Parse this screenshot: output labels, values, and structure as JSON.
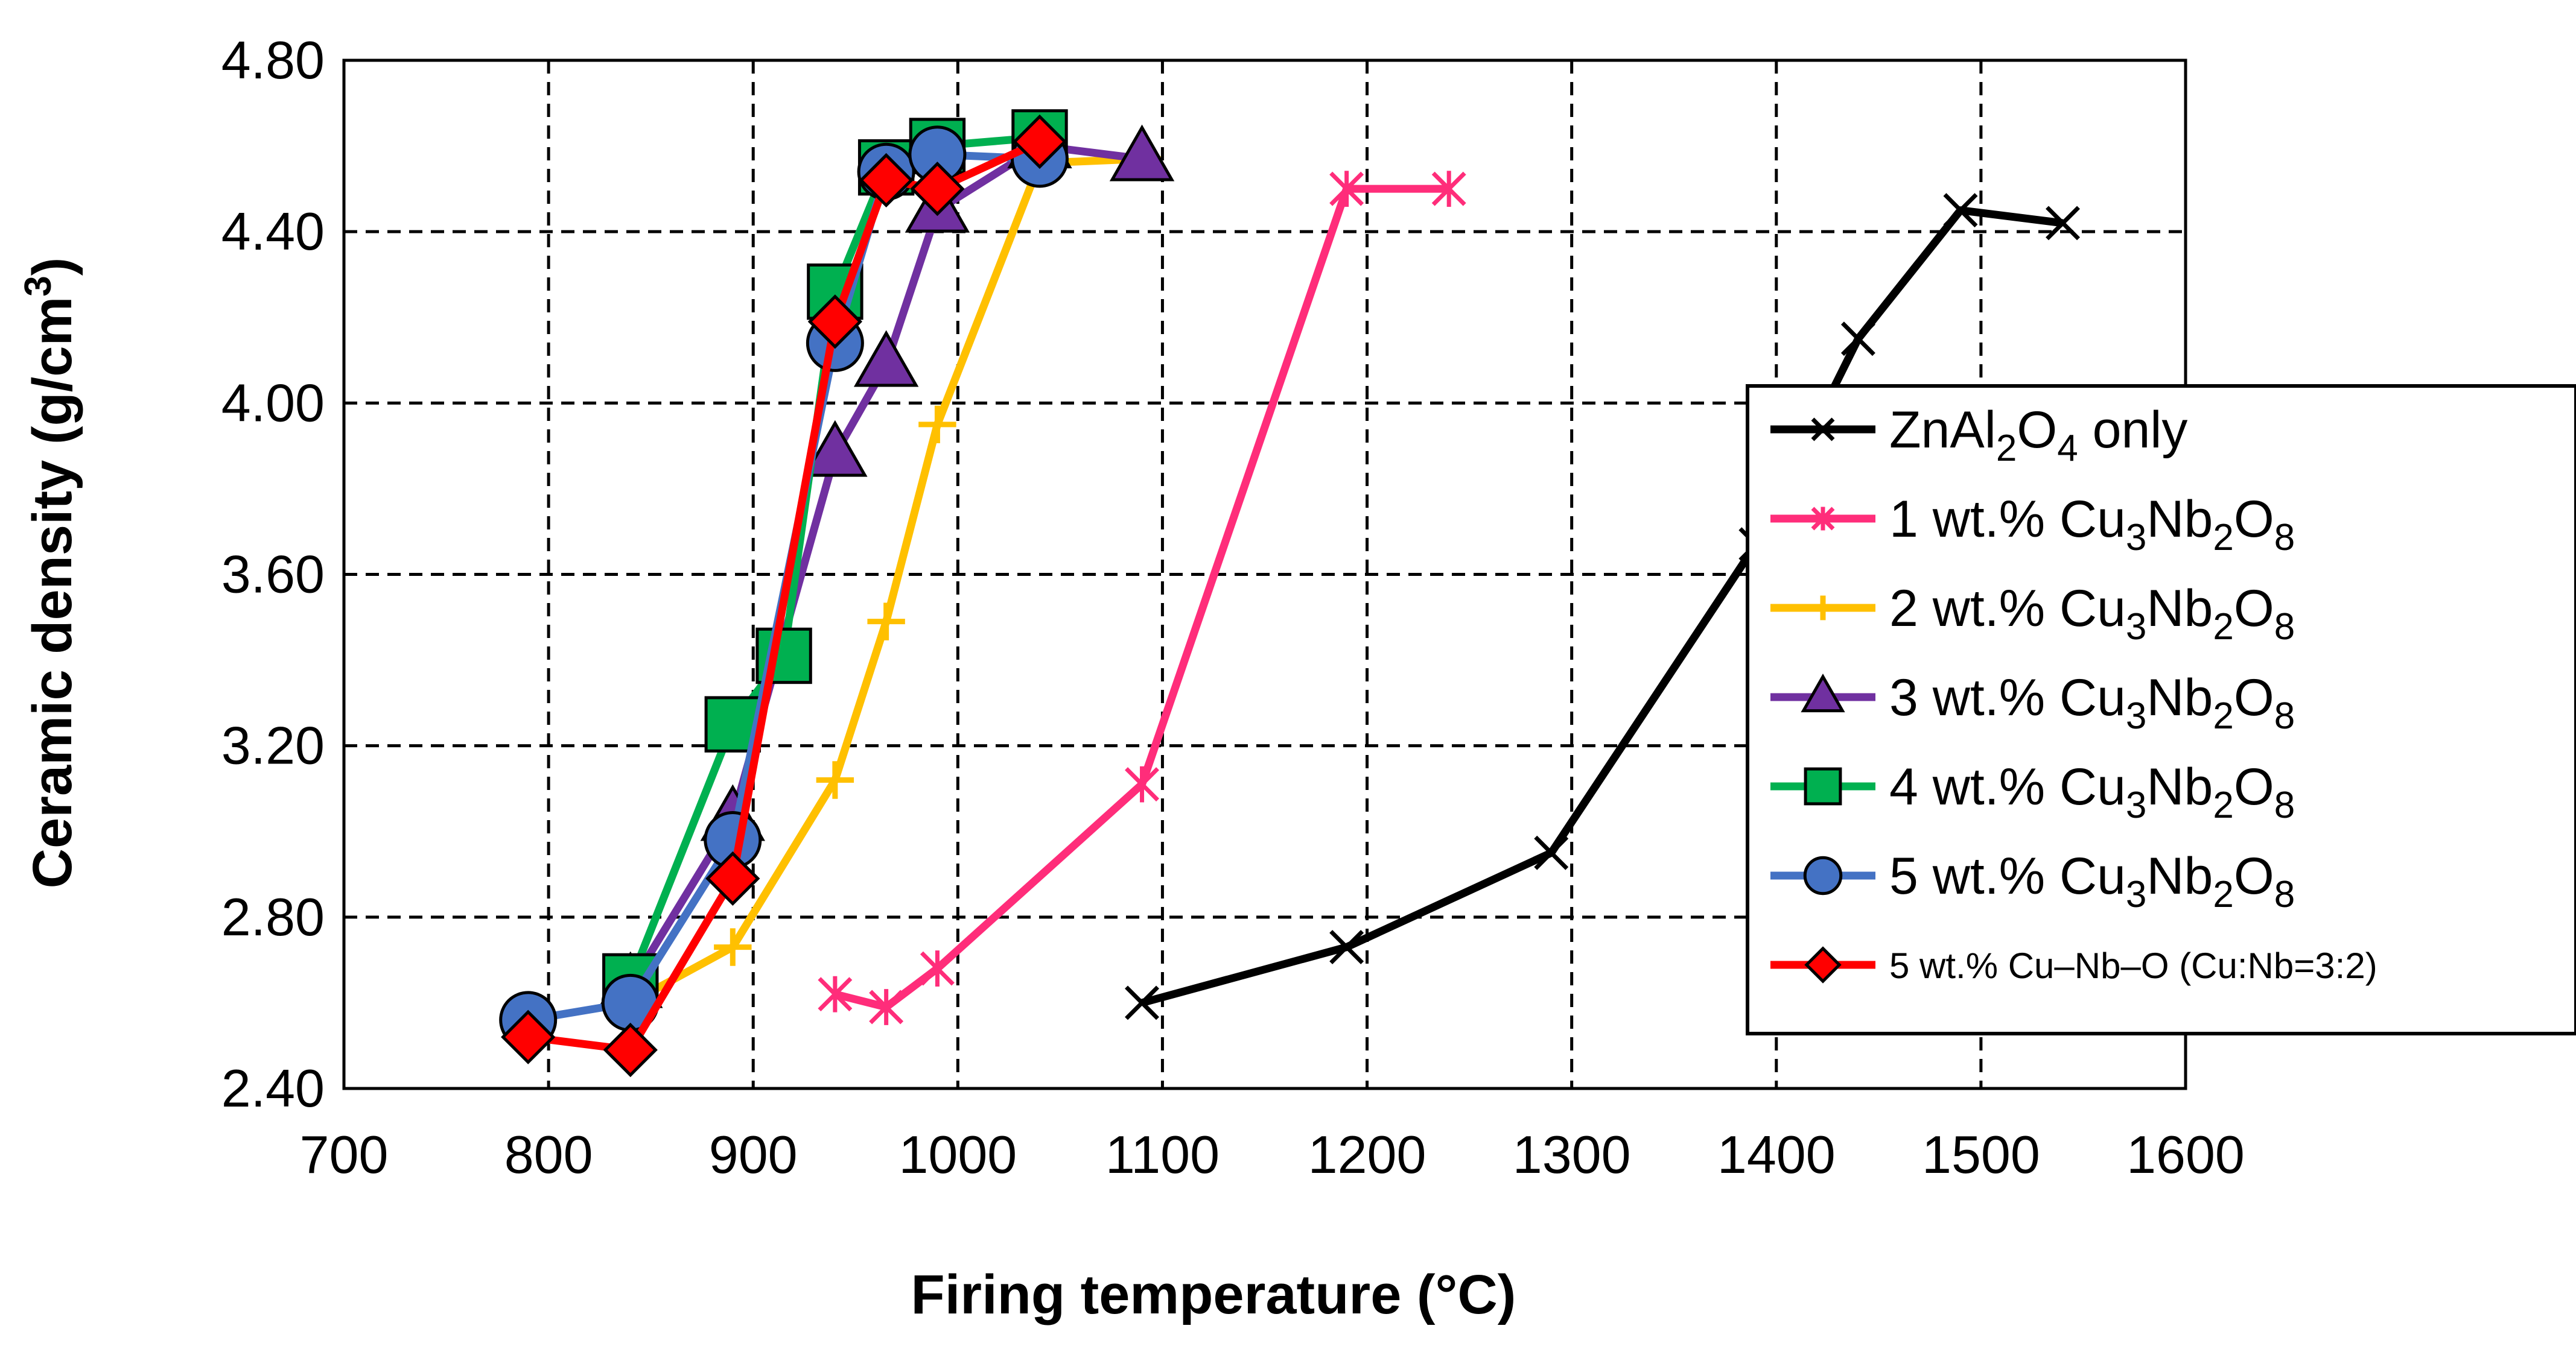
{
  "chart_data": {
    "type": "line",
    "xlabel": "Firing temperature (°C)",
    "ylabel": {
      "main": "Ceramic density (g/cm",
      "sup": "3",
      "end": ")"
    },
    "xlim": [
      700,
      1600
    ],
    "ylim": [
      2.4,
      4.8
    ],
    "x_ticks": [
      700,
      800,
      900,
      1000,
      1100,
      1200,
      1300,
      1400,
      1500,
      1600
    ],
    "x_tick_labels": [
      "700",
      "800",
      "900",
      "1000",
      "1100",
      "1200",
      "1300",
      "1400",
      "1500",
      "1600"
    ],
    "y_ticks": [
      2.4,
      2.8,
      3.2,
      3.6,
      4.0,
      4.4,
      4.8
    ],
    "y_tick_labels": [
      "2.40",
      "2.80",
      "3.20",
      "3.60",
      "4.00",
      "4.40",
      "4.80"
    ],
    "grid": "dashed",
    "legend_position": "right",
    "series": [
      {
        "name": "ZnAl2O4 only",
        "label_parts": [
          [
            "ZnAl",
            "n"
          ],
          [
            "2",
            "sub"
          ],
          [
            "O",
            "n"
          ],
          [
            "4",
            "sub"
          ],
          [
            " only",
            "n"
          ]
        ],
        "color": "#000000",
        "marker": "x",
        "x": [
          1090,
          1190,
          1290,
          1390,
          1440,
          1490,
          1540
        ],
        "y": [
          2.6,
          2.73,
          2.95,
          3.67,
          4.15,
          4.45,
          4.42
        ]
      },
      {
        "name": "1 wt.% Cu3Nb2O8",
        "label_parts": [
          [
            "1 wt.% Cu",
            "n"
          ],
          [
            "3",
            "sub"
          ],
          [
            "Nb",
            "n"
          ],
          [
            "2",
            "sub"
          ],
          [
            "O",
            "n"
          ],
          [
            "8",
            "sub"
          ]
        ],
        "color": "#ff2d7a",
        "marker": "asterisk",
        "x": [
          940,
          965,
          990,
          1090,
          1190,
          1240
        ],
        "y": [
          2.62,
          2.59,
          2.68,
          3.11,
          4.5,
          4.5
        ]
      },
      {
        "name": "2 wt.% Cu3Nb2O8",
        "label_parts": [
          [
            "2 wt.% Cu",
            "n"
          ],
          [
            "3",
            "sub"
          ],
          [
            "Nb",
            "n"
          ],
          [
            "2",
            "sub"
          ],
          [
            "O",
            "n"
          ],
          [
            "8",
            "sub"
          ]
        ],
        "color": "#ffc000",
        "marker": "plus",
        "x": [
          840,
          890,
          940,
          965,
          990,
          1040,
          1090
        ],
        "y": [
          2.6,
          2.73,
          3.12,
          3.49,
          3.95,
          4.56,
          4.57
        ]
      },
      {
        "name": "3 wt.% Cu3Nb2O8",
        "label_parts": [
          [
            "3 wt.% Cu",
            "n"
          ],
          [
            "3",
            "sub"
          ],
          [
            "Nb",
            "n"
          ],
          [
            "2",
            "sub"
          ],
          [
            "O",
            "n"
          ],
          [
            "8",
            "sub"
          ]
        ],
        "color": "#7030a0",
        "marker": "triangle",
        "x": [
          840,
          890,
          940,
          965,
          990,
          1040,
          1090
        ],
        "y": [
          2.64,
          3.03,
          3.88,
          4.09,
          4.45,
          4.6,
          4.57
        ]
      },
      {
        "name": "4 wt.% Cu3Nb2O8",
        "label_parts": [
          [
            "4 wt.% Cu",
            "n"
          ],
          [
            "3",
            "sub"
          ],
          [
            "Nb",
            "n"
          ],
          [
            "2",
            "sub"
          ],
          [
            "O",
            "n"
          ],
          [
            "8",
            "sub"
          ]
        ],
        "color": "#00b050",
        "marker": "square",
        "x": [
          840,
          890,
          915,
          940,
          965,
          990,
          1040
        ],
        "y": [
          2.65,
          3.25,
          3.41,
          4.26,
          4.55,
          4.6,
          4.62
        ]
      },
      {
        "name": "5 wt.% Cu3Nb2O8",
        "label_parts": [
          [
            "5 wt.% Cu",
            "n"
          ],
          [
            "3",
            "sub"
          ],
          [
            "Nb",
            "n"
          ],
          [
            "2",
            "sub"
          ],
          [
            "O",
            "n"
          ],
          [
            "8",
            "sub"
          ]
        ],
        "color": "#4472c4",
        "marker": "circle",
        "x": [
          790,
          840,
          890,
          940,
          965,
          990,
          1040
        ],
        "y": [
          2.56,
          2.6,
          2.98,
          4.14,
          4.54,
          4.58,
          4.57
        ]
      },
      {
        "name": "5 wt.% Cu–Nb–O (Cu:Nb=3:2)",
        "label_parts": [
          [
            "5 wt.% Cu–Nb–O (Cu:Nb=3:2)",
            "small"
          ]
        ],
        "color": "#ff0000",
        "marker": "diamond",
        "x": [
          790,
          840,
          890,
          940,
          965,
          990,
          1040
        ],
        "y": [
          2.52,
          2.49,
          2.89,
          4.19,
          4.52,
          4.5,
          4.61
        ]
      }
    ]
  }
}
